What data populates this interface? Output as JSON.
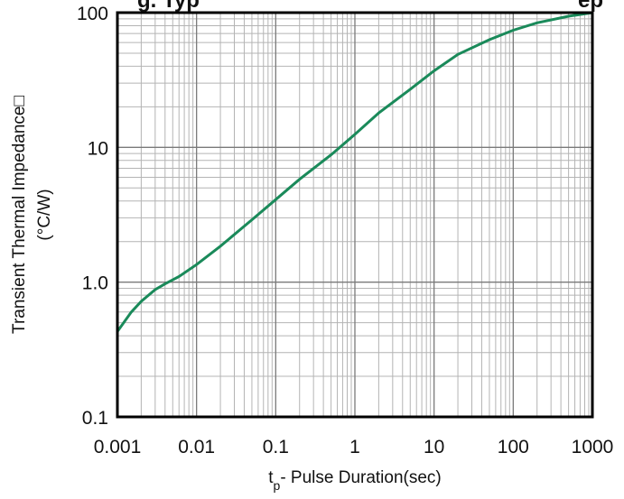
{
  "chart_data": {
    "type": "line",
    "title": "",
    "title_fragment": "g. Typ",
    "title_fragment_right": "ep",
    "xlabel": "t",
    "xlabel_sub": "p",
    "xlabel_rest": "- Pulse Duration(sec)",
    "ylabel_line1": "Transient Thermal Impedance□",
    "ylabel_line2": "(°C/W)",
    "x_scale": "log",
    "y_scale": "log",
    "xlim": [
      0.001,
      1000
    ],
    "ylim": [
      0.1,
      100
    ],
    "x_ticks": [
      0.001,
      0.01,
      0.1,
      1,
      10,
      100,
      1000
    ],
    "x_tick_labels": [
      "0.001",
      "0.01",
      "0.1",
      "1",
      "10",
      "100",
      "1000"
    ],
    "y_ticks": [
      0.1,
      1,
      10,
      100
    ],
    "y_tick_labels": [
      "0.1",
      "1.0",
      "10",
      "100"
    ],
    "grid": "major and minor",
    "line_color": "#1a8a5a",
    "series": [
      {
        "x": [
          0.001,
          0.0015,
          0.002,
          0.003,
          0.004,
          0.006,
          0.01,
          0.02,
          0.05,
          0.1,
          0.2,
          0.5,
          1,
          2,
          5,
          10,
          20,
          50,
          100,
          200,
          500,
          1000
        ],
        "y": [
          0.43,
          0.6,
          0.72,
          0.88,
          0.97,
          1.1,
          1.35,
          1.85,
          2.9,
          4.1,
          5.8,
          8.8,
          12.5,
          18,
          27,
          37,
          49,
          63,
          74,
          84,
          94,
          100
        ]
      }
    ]
  }
}
